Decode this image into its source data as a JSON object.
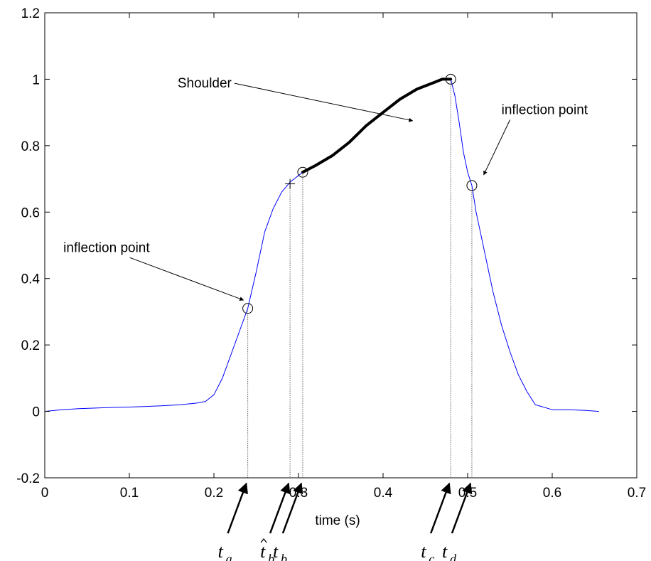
{
  "chart_data": {
    "type": "line",
    "title": "",
    "xlabel": "time (s)",
    "ylabel": "",
    "xlim": [
      0,
      0.7
    ],
    "ylim": [
      -0.2,
      1.2
    ],
    "xticks": [
      0,
      0.1,
      0.2,
      0.3,
      0.4,
      0.5,
      0.6,
      0.7
    ],
    "xtick_labels": [
      "0",
      "0.1",
      "0.2",
      "0.3",
      "0.4",
      "0.5",
      "0.6",
      "0.7"
    ],
    "yticks": [
      -0.2,
      0,
      0.2,
      0.4,
      0.6,
      0.8,
      1,
      1.2
    ],
    "ytick_labels": [
      "-0.2",
      "0",
      "0.2",
      "0.4",
      "0.6",
      "0.8",
      "1",
      "1.2"
    ],
    "grid": false,
    "series": [
      {
        "color": "#0000ff",
        "x": [
          0,
          0.02,
          0.04,
          0.06,
          0.08,
          0.1,
          0.12,
          0.14,
          0.16,
          0.18,
          0.19,
          0.2,
          0.21,
          0.22,
          0.23,
          0.24,
          0.25,
          0.26,
          0.27,
          0.28,
          0.29,
          0.305,
          0.32,
          0.34,
          0.36,
          0.38,
          0.4,
          0.42,
          0.44,
          0.46,
          0.47,
          0.48,
          0.485,
          0.49,
          0.495,
          0.5,
          0.505,
          0.51,
          0.52,
          0.53,
          0.54,
          0.55,
          0.56,
          0.57,
          0.58,
          0.6,
          0.62,
          0.64,
          0.655
        ],
        "y": [
          0.0,
          0.005,
          0.008,
          0.01,
          0.012,
          0.013,
          0.015,
          0.017,
          0.02,
          0.025,
          0.03,
          0.05,
          0.1,
          0.17,
          0.24,
          0.31,
          0.42,
          0.54,
          0.61,
          0.66,
          0.69,
          0.72,
          0.74,
          0.77,
          0.81,
          0.86,
          0.9,
          0.94,
          0.97,
          0.99,
          1.0,
          1.0,
          0.95,
          0.87,
          0.78,
          0.72,
          0.68,
          0.6,
          0.48,
          0.36,
          0.26,
          0.18,
          0.11,
          0.06,
          0.02,
          0.005,
          0.005,
          0.003,
          0.0
        ]
      },
      {
        "color": "#000000",
        "x": [
          0.305,
          0.32,
          0.34,
          0.36,
          0.38,
          0.4,
          0.42,
          0.44,
          0.46,
          0.47,
          0.48
        ],
        "y": [
          0.72,
          0.74,
          0.77,
          0.81,
          0.86,
          0.9,
          0.94,
          0.97,
          0.99,
          1.0,
          1.0
        ]
      }
    ],
    "markers": [
      {
        "kind": "circle",
        "x": 0.24,
        "y": 0.31
      },
      {
        "kind": "circle",
        "x": 0.305,
        "y": 0.72
      },
      {
        "kind": "circle",
        "x": 0.48,
        "y": 1.0
      },
      {
        "kind": "circle",
        "x": 0.505,
        "y": 0.68
      },
      {
        "kind": "plus",
        "x": 0.29,
        "y": 0.685
      }
    ],
    "vlines": [
      {
        "x": 0.24,
        "y": 0.31
      },
      {
        "x": 0.29,
        "y": 0.685
      },
      {
        "x": 0.305,
        "y": 0.72
      },
      {
        "x": 0.48,
        "y": 1.0
      },
      {
        "x": 0.505,
        "y": 0.68
      }
    ],
    "annotations": [
      {
        "text": "Shoulder",
        "tx": 0.157,
        "ty": 0.975,
        "ax": 0.435,
        "ay": 0.875
      },
      {
        "text": "inflection point",
        "tx": 0.022,
        "ty": 0.48,
        "ax": 0.235,
        "ay": 0.335
      },
      {
        "text": "inflection point",
        "tx": 0.54,
        "ty": 0.895,
        "ax": 0.519,
        "ay": 0.712
      }
    ],
    "time_markers": [
      {
        "symbol": "t",
        "sub": "a",
        "hat": false,
        "x": 0.24
      },
      {
        "symbol": "t",
        "sub": "b",
        "hat": true,
        "x": 0.29
      },
      {
        "symbol": "t",
        "sub": "b",
        "hat": false,
        "x": 0.305
      },
      {
        "symbol": "t",
        "sub": "c",
        "hat": false,
        "x": 0.48
      },
      {
        "symbol": "t",
        "sub": "d",
        "hat": false,
        "x": 0.505
      }
    ]
  }
}
